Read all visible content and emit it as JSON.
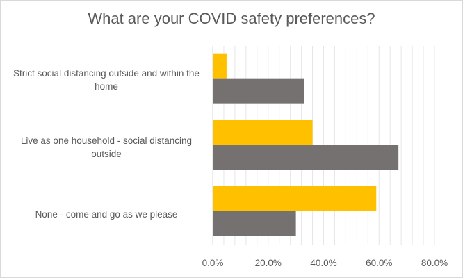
{
  "chart_data": {
    "type": "bar",
    "orientation": "horizontal",
    "title": "What are your COVID safety preferences?",
    "categories": [
      "Strict social distancing outside and within the home",
      "Live as one household - social distancing outside",
      "None - come and go as we please"
    ],
    "series": [
      {
        "color": "#ffc000",
        "values": [
          5.0,
          36.0,
          59.0
        ]
      },
      {
        "color": "#767171",
        "values": [
          33.0,
          67.0,
          30.0
        ]
      }
    ],
    "xlim": [
      0,
      80
    ],
    "x_ticks": [
      "0.0%",
      "20.0%",
      "40.0%",
      "60.0%",
      "80.0%"
    ],
    "xlabel": "",
    "ylabel": "",
    "grid": "vertical-minor",
    "legend": "none"
  }
}
